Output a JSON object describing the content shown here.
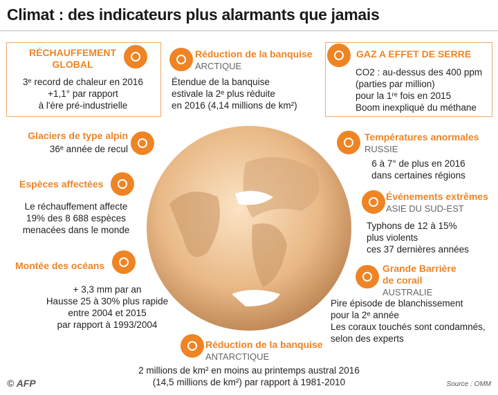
{
  "title": "Climat : des indicateurs plus alarmants que jamais",
  "panels": [
    {
      "title": "RÉCHAUFFEMENT GLOBAL",
      "lines": [
        "3ᵉ record de chaleur en 2016",
        "+1,1° par rapport",
        "à l'ère pré-industrielle"
      ]
    },
    {
      "title": "Réduction de la banquise",
      "subtitle": "ARCTIQUE",
      "lines": [
        "Étendue de la banquise",
        "estivale la 2ᵉ plus réduite",
        "en 2016 (4,14 millions de km²)"
      ]
    },
    {
      "title": "GAZ A EFFET DE SERRE",
      "lines": [
        "CO2 : au-dessus des 400 ppm",
        "(parties par million)",
        "pour la 1ʳᵉ fois en 2015",
        "Boom inexpliqué du méthane"
      ]
    },
    {
      "title": "Glaciers de type alpin",
      "lines": [
        "36ᵉ année de recul"
      ]
    },
    {
      "title": "Températures anormales",
      "subtitle": "RUSSIE",
      "lines": [
        "6 à 7° de plus en 2016",
        "dans certaines régions"
      ]
    },
    {
      "title": "Espèces affectées",
      "lines": [
        "Le réchauffement affecte",
        "19% des 8 688 espèces",
        "menacées dans le monde"
      ]
    },
    {
      "title": "Événements extrêmes",
      "subtitle": "ASIE DU SUD-EST",
      "lines": [
        "Typhons de 12 à 15%",
        "plus violents",
        "ces 37 dernières années"
      ]
    },
    {
      "title": "Montée des océans",
      "lines": [
        "+ 3,3 mm par an",
        "Hausse 25 à 30% plus rapide",
        "entre 2004 et 2015",
        "par rapport à 1993/2004"
      ]
    },
    {
      "title": "Grande Barrière de corail",
      "subtitle": "AUSTRALIE",
      "lines": [
        "Pire épisode de blanchissement",
        "pour la 2ᵉ année",
        "Les coraux touchés sont condamnés,",
        "selon des experts"
      ]
    },
    {
      "title": "Réduction de la banquise",
      "subtitle": "ANTARCTIQUE",
      "lines": [
        "2 millions de km² en moins au printemps austral 2016",
        "(14,5 millions de km²) par rapport à 1981-2010"
      ]
    }
  ],
  "footer": {
    "logo": "AFP",
    "source": "Source : OMM"
  }
}
